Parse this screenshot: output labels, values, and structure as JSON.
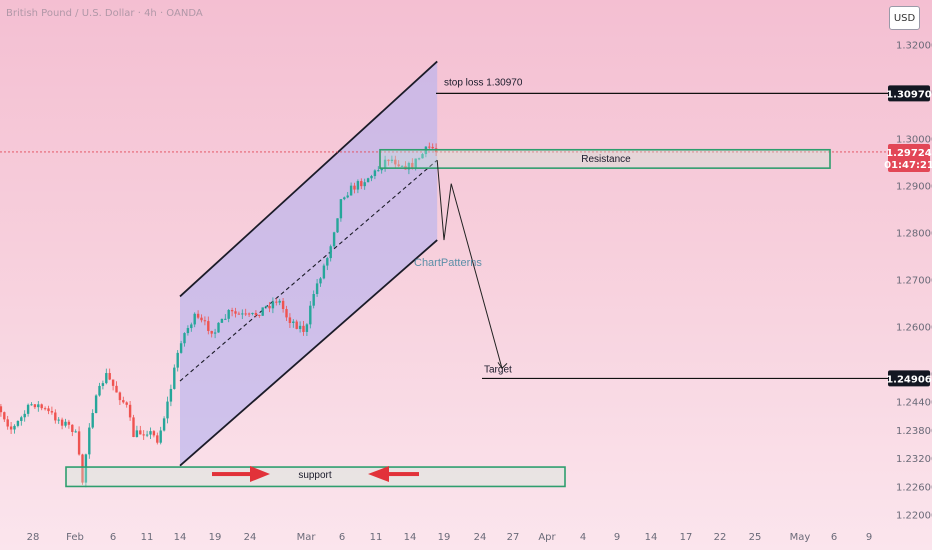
{
  "symbol": "British Pound / U.S. Dollar · 4h · OANDA",
  "currency": "USD",
  "colors": {
    "up": "#26a69a",
    "down": "#ef5350",
    "channel_fill": "#b9b3ee",
    "zone_stroke": "#2e9e6e",
    "arrow": "#e2323a",
    "price_tag": "#e24756",
    "level_tag": "#131722"
  },
  "chart_data": {
    "type": "candlestick",
    "ylim": [
      1.218,
      1.324
    ],
    "y_ticks": [
      "1.32000",
      "1.31000",
      "1.30000",
      "1.29000",
      "1.28000",
      "1.27000",
      "1.26000",
      "1.25000",
      "1.24400",
      "1.23800",
      "1.23200",
      "1.22600",
      "1.22000"
    ],
    "y_tick_values": [
      1.32,
      1.31,
      1.3,
      1.29,
      1.28,
      1.27,
      1.26,
      1.25,
      1.244,
      1.238,
      1.232,
      1.226,
      1.22
    ],
    "x_ticks": [
      "28",
      "Feb",
      "6",
      "11",
      "14",
      "19",
      "24",
      "Mar",
      "6",
      "11",
      "14",
      "19",
      "24",
      "27",
      "Apr",
      "4",
      "9",
      "14",
      "17",
      "22",
      "25",
      "May",
      "6",
      "9"
    ],
    "x_tick_dates": [
      "2024-01-28",
      "2024-02-01",
      "2024-02-06",
      "2024-02-11",
      "2024-02-14",
      "2024-02-19",
      "2024-02-24",
      "2024-03-01",
      "2024-03-06",
      "2024-03-11",
      "2024-03-14",
      "2024-03-19",
      "2024-03-24",
      "2024-03-27",
      "2024-04-01",
      "2024-04-04",
      "2024-04-09",
      "2024-04-14",
      "2024-04-17",
      "2024-04-22",
      "2024-04-25",
      "2024-05-01",
      "2024-05-06",
      "2024-05-09"
    ],
    "price_path": [
      [
        "2024-01-23",
        1.235
      ],
      [
        "2024-01-24",
        1.246
      ],
      [
        "2024-01-26",
        1.238
      ],
      [
        "2024-01-28",
        1.244
      ],
      [
        "2024-02-01",
        1.238
      ],
      [
        "2024-02-02",
        1.227
      ],
      [
        "2024-02-03",
        1.241
      ],
      [
        "2024-02-05",
        1.25
      ],
      [
        "2024-02-08",
        1.243
      ],
      [
        "2024-02-09",
        1.237
      ],
      [
        "2024-02-11",
        1.238
      ],
      [
        "2024-02-12",
        1.236
      ],
      [
        "2024-02-13",
        1.245
      ],
      [
        "2024-02-14",
        1.257
      ],
      [
        "2024-02-16",
        1.262
      ],
      [
        "2024-02-19",
        1.259
      ],
      [
        "2024-02-21",
        1.263
      ],
      [
        "2024-02-24",
        1.262
      ],
      [
        "2024-02-27",
        1.266
      ],
      [
        "2024-02-28",
        1.262
      ],
      [
        "2024-03-01",
        1.259
      ],
      [
        "2024-03-02",
        1.267
      ],
      [
        "2024-03-04",
        1.275
      ],
      [
        "2024-03-06",
        1.288
      ],
      [
        "2024-03-09",
        1.291
      ],
      [
        "2024-03-11",
        1.293
      ],
      [
        "2024-03-12",
        1.296
      ],
      [
        "2024-03-14",
        1.294
      ],
      [
        "2024-03-16",
        1.297
      ],
      [
        "2024-03-17",
        1.2985
      ],
      [
        "2024-03-18",
        1.2972
      ]
    ],
    "channel": {
      "upper": [
        [
          "2024-02-14",
          1.2665
        ],
        [
          "2024-03-18",
          1.3165
        ]
      ],
      "lower": [
        [
          "2024-02-14",
          1.2305
        ],
        [
          "2024-03-18",
          1.2785
        ]
      ],
      "midline": [
        [
          "2024-02-14",
          1.2485
        ],
        [
          "2024-03-18",
          1.2955
        ]
      ]
    },
    "projection": [
      [
        "2024-03-18",
        1.2955
      ],
      [
        "2024-03-19",
        1.2785
      ],
      [
        "2024-03-20",
        1.2905
      ],
      [
        "2024-03-26",
        1.2512
      ]
    ],
    "current_price": {
      "value": "1.29724",
      "countdown": "01:47:21",
      "y": 1.29724
    },
    "annotations": {
      "stop_loss": {
        "label": "stop loss 1.30970",
        "tag": "1.30970",
        "y": 1.3097
      },
      "resistance": {
        "label": "Resistance",
        "y_range": [
          1.2955,
          1.2975
        ]
      },
      "target": {
        "label": "Target",
        "tag": "1.24906",
        "y": 1.24906
      },
      "support": {
        "label": "support",
        "y_range": [
          1.2265,
          1.2285
        ]
      },
      "watermark": "ChartPatterns"
    }
  }
}
